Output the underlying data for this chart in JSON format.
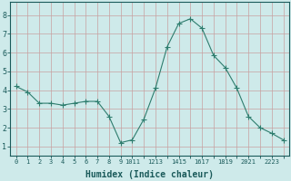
{
  "x": [
    0,
    1,
    2,
    3,
    4,
    5,
    6,
    7,
    8,
    9,
    10,
    11,
    12,
    13,
    14,
    15,
    16,
    17,
    18,
    19,
    20,
    21,
    22,
    23
  ],
  "y": [
    4.2,
    3.9,
    3.3,
    3.3,
    3.2,
    3.3,
    3.4,
    3.4,
    2.6,
    1.2,
    1.35,
    2.45,
    4.1,
    6.3,
    7.55,
    7.8,
    7.3,
    5.85,
    5.2,
    4.1,
    2.6,
    2.0,
    1.7,
    1.35
  ],
  "line_color": "#2e7d6e",
  "marker": "D",
  "marker_size": 2.0,
  "bg_color": "#ceeaea",
  "grid_color_major": "#c8a0a0",
  "grid_color_minor": "#c8a0a0",
  "xlabel": "Humidex (Indice chaleur)",
  "xlabel_fontsize": 7,
  "xlabel_weight": "bold",
  "yticks": [
    1,
    2,
    3,
    4,
    5,
    6,
    7,
    8
  ],
  "xtick_labels": [
    "0",
    "1",
    "2",
    "3",
    "4",
    "5",
    "6",
    "7",
    "8",
    "9",
    "1011",
    "1213",
    "1415",
    "1617",
    "1819",
    "2021",
    "2223"
  ],
  "ylim": [
    0.5,
    8.7
  ],
  "xlim": [
    -0.5,
    23.5
  ],
  "figwidth": 3.2,
  "figheight": 2.0,
  "dpi": 100
}
